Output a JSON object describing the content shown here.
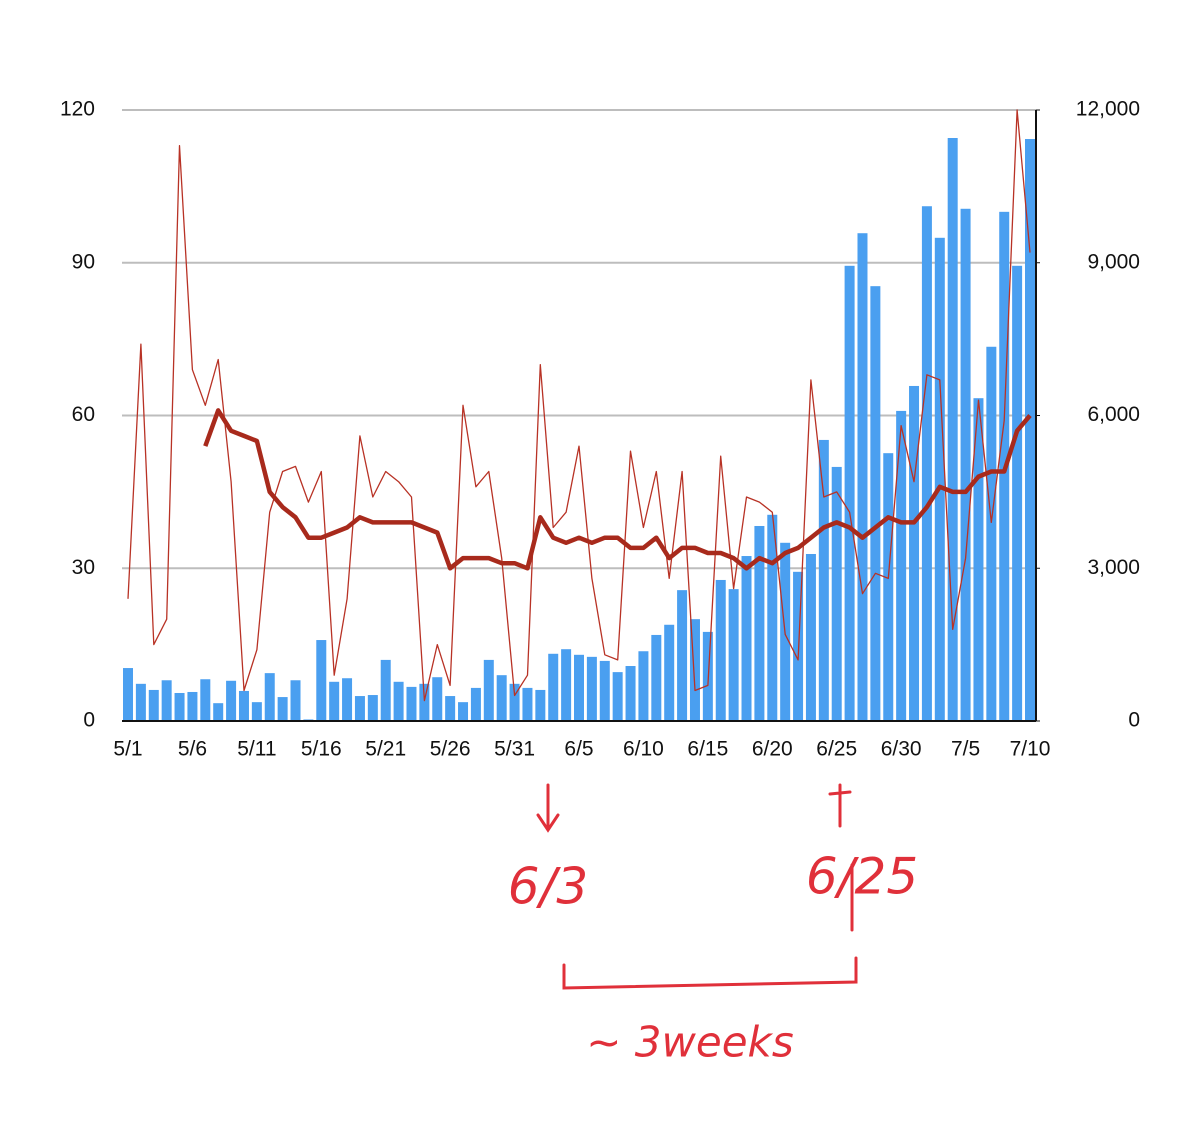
{
  "chart_data": {
    "type": "bar",
    "categories": [
      "5/1",
      null,
      null,
      null,
      null,
      "5/6",
      null,
      null,
      null,
      null,
      "5/11",
      null,
      null,
      null,
      null,
      "5/16",
      null,
      null,
      null,
      null,
      "5/21",
      null,
      null,
      null,
      null,
      "5/26",
      null,
      null,
      null,
      null,
      "5/31",
      null,
      null,
      null,
      null,
      "6/5",
      null,
      null,
      null,
      null,
      "6/10",
      null,
      null,
      null,
      null,
      "6/15",
      null,
      null,
      null,
      null,
      "6/20",
      null,
      null,
      null,
      null,
      "6/25",
      null,
      null,
      null,
      null,
      "6/30",
      null,
      null,
      null,
      null,
      "7/5",
      null,
      null,
      null,
      null,
      "7/10"
    ],
    "series": [
      {
        "type": "bar",
        "axis": "y2",
        "color": "#4a9ff0",
        "values": [
          1040,
          730,
          610,
          800,
          550,
          570,
          820,
          350,
          790,
          590,
          370,
          940,
          470,
          800,
          30,
          1590,
          770,
          840,
          490,
          510,
          1200,
          770,
          670,
          730,
          860,
          490,
          370,
          650,
          1200,
          900,
          730,
          650,
          610,
          1320,
          1410,
          1300,
          1260,
          1180,
          960,
          1080,
          1370,
          1690,
          1890,
          2570,
          2000,
          1750,
          2770,
          2590,
          3240,
          3830,
          4050,
          3500,
          2930,
          3280,
          5520,
          4990,
          8940,
          9580,
          8540,
          5260,
          6090,
          6580,
          10110,
          9490,
          11450,
          10060,
          6340,
          7350,
          10000,
          8940,
          11430
        ]
      },
      {
        "type": "line",
        "color": "#b83225",
        "width": 1.3,
        "values": [
          24,
          74,
          15,
          20,
          113,
          69,
          62,
          71,
          47,
          6,
          14,
          41,
          49,
          50,
          43,
          49,
          9,
          24,
          56,
          44,
          49,
          47,
          44,
          4,
          15,
          7,
          62,
          46,
          49,
          32,
          5,
          9,
          70,
          38,
          41,
          54,
          28,
          13,
          12,
          53,
          38,
          49,
          28,
          49,
          6,
          7,
          52,
          26,
          44,
          43,
          41,
          17,
          12,
          67,
          44,
          45,
          41,
          25,
          29,
          28,
          58,
          47,
          68,
          67,
          18,
          32,
          63,
          39,
          59,
          120,
          92
        ]
      },
      {
        "type": "line",
        "color": "#a82a1c",
        "width": 4.5,
        "values": [
          null,
          null,
          null,
          null,
          null,
          null,
          54,
          61,
          57,
          56,
          55,
          45,
          42,
          40,
          36,
          36,
          37,
          38,
          40,
          39,
          39,
          39,
          39,
          38,
          37,
          30,
          32,
          32,
          32,
          31,
          31,
          30,
          40,
          36,
          35,
          36,
          35,
          36,
          36,
          34,
          34,
          36,
          32,
          34,
          34,
          33,
          33,
          32,
          30,
          32,
          31,
          33,
          34,
          36,
          38,
          39,
          38,
          36,
          38,
          40,
          39,
          39,
          42,
          46,
          45,
          45,
          48,
          49,
          49,
          57,
          60
        ]
      }
    ],
    "ylim": [
      0,
      120
    ],
    "yticks": [
      0,
      30,
      60,
      90,
      120
    ],
    "y2lim": [
      0,
      12000
    ],
    "y2ticks": [
      0,
      {
        "value": 3000,
        "label": "3,000"
      },
      {
        "value": 6000,
        "label": "6,000"
      },
      {
        "value": 9000,
        "label": "9,000"
      },
      {
        "value": 12000,
        "label": "12,000"
      }
    ],
    "grid": true,
    "annotations": [
      "6/3",
      "6/25",
      "~ 3weeks"
    ]
  }
}
